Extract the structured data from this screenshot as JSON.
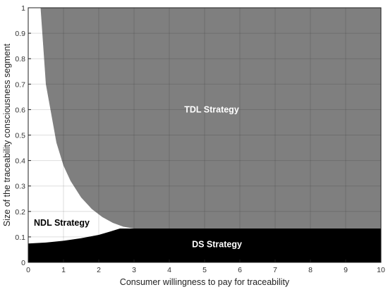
{
  "chart_data": {
    "type": "area",
    "xlabel": "Consumer willingness to pay for traceability",
    "ylabel": "Size of the traceability consciousness segment",
    "xlim": [
      0,
      10
    ],
    "ylim": [
      0,
      1
    ],
    "xticks": [
      0,
      1,
      2,
      3,
      4,
      5,
      6,
      7,
      8,
      9,
      10
    ],
    "yticks": [
      0,
      0.1,
      0.2,
      0.3,
      0.4,
      0.5,
      0.6,
      0.7,
      0.8,
      0.9,
      1
    ],
    "grid": true,
    "regions": [
      {
        "name": "TDL Strategy",
        "color": "#7f7f7f",
        "label_color": "#ffffff",
        "label_at": {
          "x": 5.2,
          "y": 0.6
        },
        "boundary_x": [
          0.35,
          0.5,
          0.8,
          1.0,
          1.2,
          1.5,
          1.8,
          2.1,
          2.4,
          2.7,
          3.0
        ],
        "boundary_y": [
          1.0,
          0.7,
          0.47,
          0.38,
          0.32,
          0.255,
          0.21,
          0.178,
          0.155,
          0.14,
          0.133
        ]
      },
      {
        "name": "NDL Strategy",
        "color": "#ffffff",
        "label_color": "#000000",
        "label_at": {
          "x": 0.95,
          "y": 0.155
        }
      },
      {
        "name": "DS Strategy",
        "color": "#000000",
        "label_color": "#ffffff",
        "label_at": {
          "x": 5.35,
          "y": 0.07
        },
        "top_y": 0.133,
        "lower_boundary_x": [
          0,
          0.5,
          1.0,
          1.5,
          2.0,
          2.3,
          2.6
        ],
        "lower_boundary_y": [
          0.074,
          0.078,
          0.085,
          0.095,
          0.108,
          0.12,
          0.133
        ]
      }
    ]
  }
}
